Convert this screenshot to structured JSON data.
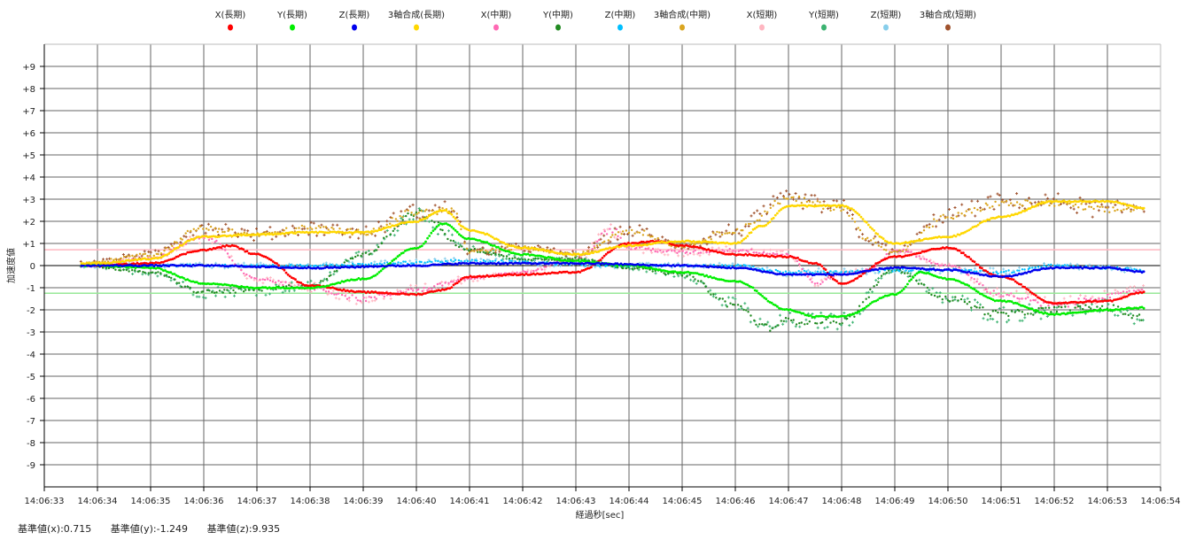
{
  "chart_data": {
    "type": "scatter",
    "xlabel": "経過秒[sec]",
    "ylabel": "加速度値",
    "xlim_seconds": [
      0,
      21
    ],
    "x_tick_labels": [
      "14:06:33",
      "14:06:34",
      "14:06:35",
      "14:06:36",
      "14:06:37",
      "14:06:38",
      "14:06:39",
      "14:06:40",
      "14:06:41",
      "14:06:42",
      "14:06:43",
      "14:06:44",
      "14:06:45",
      "14:06:46",
      "14:06:47",
      "14:06:48",
      "14:06:49",
      "14:06:50",
      "14:06:51",
      "14:06:52",
      "14:06:53",
      "14:06:54"
    ],
    "ylim": [
      -10,
      10
    ],
    "y_tick_labels": [
      "+9",
      "+8",
      "+7",
      "+6",
      "+5",
      "+4",
      "+3",
      "+2",
      "+1",
      "0",
      "-1",
      "-2",
      "-3",
      "-4",
      "-5",
      "-6",
      "-7",
      "-8",
      "-9"
    ],
    "y_tick_values": [
      9,
      8,
      7,
      6,
      5,
      4,
      3,
      2,
      1,
      0,
      -1,
      -2,
      -3,
      -4,
      -5,
      -6,
      -7,
      -8,
      -9
    ],
    "grid": true,
    "legend_position": "top",
    "reference_lines": [
      {
        "name": "基準値(x)",
        "value": 0.715,
        "color": "#ffb6c1"
      },
      {
        "name": "基準値(y)",
        "value": -1.249,
        "color": "#98e898"
      }
    ],
    "t_range": [
      0.7,
      20.7
    ],
    "series": [
      {
        "name": "X(長期)",
        "color": "#ff0000",
        "style": "line",
        "jitter": 0.03,
        "points": [
          [
            0.7,
            0
          ],
          [
            1,
            0
          ],
          [
            2,
            0.1
          ],
          [
            3,
            0.7
          ],
          [
            3.5,
            0.9
          ],
          [
            4,
            0.5
          ],
          [
            5,
            -0.9
          ],
          [
            6,
            -1.2
          ],
          [
            7,
            -1.3
          ],
          [
            7.5,
            -1.1
          ],
          [
            8,
            -0.5
          ],
          [
            9,
            -0.4
          ],
          [
            10,
            -0.3
          ],
          [
            11,
            1.0
          ],
          [
            11.5,
            1.1
          ],
          [
            12,
            0.9
          ],
          [
            13,
            0.5
          ],
          [
            14,
            0.4
          ],
          [
            14.5,
            0.1
          ],
          [
            15,
            -0.8
          ],
          [
            16,
            0.4
          ],
          [
            17,
            0.8
          ],
          [
            18,
            -0.5
          ],
          [
            19,
            -1.7
          ],
          [
            20,
            -1.6
          ],
          [
            20.7,
            -1.2
          ]
        ]
      },
      {
        "name": "Y(長期)",
        "color": "#00ee00",
        "style": "line",
        "jitter": 0.03,
        "points": [
          [
            0.7,
            0
          ],
          [
            1,
            0
          ],
          [
            2,
            -0.1
          ],
          [
            3,
            -0.8
          ],
          [
            4,
            -1.0
          ],
          [
            5,
            -1.0
          ],
          [
            6,
            -0.6
          ],
          [
            7,
            0.8
          ],
          [
            7.5,
            1.9
          ],
          [
            8,
            1.2
          ],
          [
            9,
            0.5
          ],
          [
            10,
            0.2
          ],
          [
            11,
            0.0
          ],
          [
            12,
            -0.3
          ],
          [
            13,
            -0.7
          ],
          [
            14,
            -2.0
          ],
          [
            14.5,
            -2.3
          ],
          [
            15,
            -2.3
          ],
          [
            16,
            -1.3
          ],
          [
            16.5,
            -0.3
          ],
          [
            17,
            -0.6
          ],
          [
            18,
            -1.6
          ],
          [
            19,
            -2.2
          ],
          [
            20,
            -2.0
          ],
          [
            20.7,
            -1.9
          ]
        ]
      },
      {
        "name": "Z(長期)",
        "color": "#0000ee",
        "style": "line",
        "jitter": 0.03,
        "points": [
          [
            0.7,
            0
          ],
          [
            3,
            0
          ],
          [
            5,
            -0.1
          ],
          [
            7,
            0
          ],
          [
            8,
            0.1
          ],
          [
            10,
            0.1
          ],
          [
            12,
            0
          ],
          [
            13,
            -0.1
          ],
          [
            14,
            -0.4
          ],
          [
            15,
            -0.4
          ],
          [
            16,
            -0.1
          ],
          [
            17,
            -0.2
          ],
          [
            18,
            -0.5
          ],
          [
            19,
            -0.1
          ],
          [
            20,
            -0.1
          ],
          [
            20.7,
            -0.3
          ]
        ]
      },
      {
        "name": "3軸合成(長期)",
        "color": "#ffd700",
        "style": "line",
        "jitter": 0.03,
        "points": [
          [
            0.7,
            0.1
          ],
          [
            1,
            0.1
          ],
          [
            2,
            0.3
          ],
          [
            3,
            1.3
          ],
          [
            4,
            1.4
          ],
          [
            5,
            1.5
          ],
          [
            6,
            1.5
          ],
          [
            7,
            2.0
          ],
          [
            7.5,
            2.5
          ],
          [
            8,
            1.6
          ],
          [
            9,
            0.8
          ],
          [
            10,
            0.5
          ],
          [
            11,
            0.9
          ],
          [
            12,
            1.1
          ],
          [
            13,
            1.0
          ],
          [
            13.5,
            1.8
          ],
          [
            14,
            2.7
          ],
          [
            15,
            2.7
          ],
          [
            16,
            1.0
          ],
          [
            17,
            1.3
          ],
          [
            18,
            2.2
          ],
          [
            19,
            2.9
          ],
          [
            20,
            2.9
          ],
          [
            20.7,
            2.6
          ]
        ]
      },
      {
        "name": "X(中期)",
        "color": "#ff69b4",
        "style": "dot",
        "jitter": 0.12,
        "points": [
          [
            0.7,
            0
          ],
          [
            2,
            0.3
          ],
          [
            3,
            1.3
          ],
          [
            4,
            -0.6
          ],
          [
            5,
            -1.0
          ],
          [
            6,
            -1.5
          ],
          [
            7,
            -1.1
          ],
          [
            8,
            -0.6
          ],
          [
            9,
            -0.3
          ],
          [
            10,
            0.3
          ],
          [
            10.7,
            1.6
          ],
          [
            11,
            0.8
          ],
          [
            12,
            0.6
          ],
          [
            13,
            0.7
          ],
          [
            14,
            0.5
          ],
          [
            14.5,
            -0.8
          ],
          [
            15,
            -0.4
          ],
          [
            15.5,
            -0.2
          ],
          [
            16,
            0.7
          ],
          [
            17,
            0.0
          ],
          [
            18,
            -1.3
          ],
          [
            19,
            -1.8
          ],
          [
            20,
            -1.4
          ],
          [
            20.7,
            -1.1
          ]
        ]
      },
      {
        "name": "Y(中期)",
        "color": "#228b22",
        "style": "dot",
        "jitter": 0.12,
        "points": [
          [
            0.7,
            0
          ],
          [
            2,
            -0.3
          ],
          [
            3,
            -1.2
          ],
          [
            4,
            -1.1
          ],
          [
            5,
            -0.9
          ],
          [
            6,
            0.5
          ],
          [
            7,
            2.4
          ],
          [
            8,
            0.7
          ],
          [
            9,
            0.3
          ],
          [
            10,
            0.3
          ],
          [
            11,
            -0.1
          ],
          [
            12,
            -0.4
          ],
          [
            13,
            -1.8
          ],
          [
            13.6,
            -2.8
          ],
          [
            14,
            -2.5
          ],
          [
            15,
            -2.5
          ],
          [
            16,
            -0.2
          ],
          [
            17,
            -1.5
          ],
          [
            18,
            -2.2
          ],
          [
            19,
            -2.0
          ],
          [
            20,
            -1.9
          ],
          [
            20.7,
            -2.4
          ]
        ]
      },
      {
        "name": "Z(中期)",
        "color": "#00bfff",
        "style": "dot",
        "jitter": 0.15,
        "points": [
          [
            0.7,
            0
          ],
          [
            5,
            0
          ],
          [
            8,
            0.2
          ],
          [
            11,
            0
          ],
          [
            13,
            0
          ],
          [
            14,
            -0.3
          ],
          [
            15,
            -0.3
          ],
          [
            16,
            -0.2
          ],
          [
            17,
            -0.2
          ],
          [
            18,
            -0.3
          ],
          [
            19,
            0
          ],
          [
            20,
            -0.1
          ],
          [
            20.7,
            -0.2
          ]
        ]
      },
      {
        "name": "3軸合成(中期)",
        "color": "#daa520",
        "style": "dot",
        "jitter": 0.12,
        "points": [
          [
            0.7,
            0.1
          ],
          [
            2,
            0.5
          ],
          [
            3,
            1.7
          ],
          [
            4,
            1.4
          ],
          [
            5,
            1.7
          ],
          [
            6,
            1.5
          ],
          [
            7,
            2.4
          ],
          [
            7.7,
            2.5
          ],
          [
            8,
            0.6
          ],
          [
            9,
            0.8
          ],
          [
            10,
            0.5
          ],
          [
            11,
            1.6
          ],
          [
            12,
            0.9
          ],
          [
            13,
            1.6
          ],
          [
            14,
            3.0
          ],
          [
            15,
            2.6
          ],
          [
            15.5,
            1.2
          ],
          [
            16,
            0.6
          ],
          [
            17,
            2.2
          ],
          [
            18,
            2.8
          ],
          [
            19,
            2.8
          ],
          [
            20,
            2.5
          ],
          [
            20.7,
            2.6
          ]
        ]
      },
      {
        "name": "X(短期)",
        "color": "#ffb6c1",
        "style": "plus",
        "jitter": 0.3,
        "points": [
          [
            0.7,
            0
          ],
          [
            2,
            0.3
          ],
          [
            3,
            1.3
          ],
          [
            4,
            -0.6
          ],
          [
            5,
            -1.0
          ],
          [
            6,
            -1.5
          ],
          [
            7,
            -1.1
          ],
          [
            8,
            -0.6
          ],
          [
            9,
            -0.3
          ],
          [
            10,
            0.3
          ],
          [
            10.7,
            1.6
          ],
          [
            11,
            0.8
          ],
          [
            12,
            0.6
          ],
          [
            13,
            0.7
          ],
          [
            14,
            0.5
          ],
          [
            14.5,
            -0.8
          ],
          [
            15,
            -0.4
          ],
          [
            15.5,
            -0.2
          ],
          [
            16,
            0.7
          ],
          [
            17,
            0.0
          ],
          [
            18,
            -1.3
          ],
          [
            19,
            -1.8
          ],
          [
            20,
            -1.4
          ],
          [
            20.7,
            -1.1
          ]
        ]
      },
      {
        "name": "Y(短期)",
        "color": "#3cb371",
        "style": "plus",
        "jitter": 0.3,
        "points": [
          [
            0.7,
            0
          ],
          [
            2,
            -0.3
          ],
          [
            3,
            -1.2
          ],
          [
            4,
            -1.1
          ],
          [
            5,
            -0.9
          ],
          [
            6,
            0.5
          ],
          [
            7,
            2.4
          ],
          [
            8,
            0.7
          ],
          [
            9,
            0.3
          ],
          [
            10,
            0.3
          ],
          [
            11,
            -0.1
          ],
          [
            12,
            -0.4
          ],
          [
            13,
            -1.8
          ],
          [
            13.6,
            -2.8
          ],
          [
            14,
            -2.5
          ],
          [
            15,
            -2.5
          ],
          [
            16,
            -0.2
          ],
          [
            17,
            -1.5
          ],
          [
            18,
            -2.2
          ],
          [
            19,
            -2.0
          ],
          [
            20,
            -1.9
          ],
          [
            20.7,
            -2.4
          ]
        ]
      },
      {
        "name": "Z(短期)",
        "color": "#87ceeb",
        "style": "plus",
        "jitter": 0.4,
        "points": [
          [
            0.7,
            0
          ],
          [
            5,
            0
          ],
          [
            8,
            0.2
          ],
          [
            11,
            0
          ],
          [
            13,
            0
          ],
          [
            14,
            -0.3
          ],
          [
            15,
            -0.3
          ],
          [
            16,
            -0.2
          ],
          [
            17,
            -0.2
          ],
          [
            18,
            -0.3
          ],
          [
            19,
            0
          ],
          [
            20,
            -0.1
          ],
          [
            20.7,
            -0.2
          ]
        ]
      },
      {
        "name": "3軸合成(短期)",
        "color": "#a0522d",
        "style": "plus",
        "jitter": 0.3,
        "points": [
          [
            0.7,
            0.1
          ],
          [
            2,
            0.5
          ],
          [
            3,
            1.8
          ],
          [
            4,
            1.4
          ],
          [
            5,
            1.7
          ],
          [
            6,
            1.5
          ],
          [
            7,
            2.4
          ],
          [
            7.7,
            2.6
          ],
          [
            8,
            0.6
          ],
          [
            9,
            0.8
          ],
          [
            10,
            0.5
          ],
          [
            11,
            1.6
          ],
          [
            12,
            0.9
          ],
          [
            13,
            1.6
          ],
          [
            14,
            3.0
          ],
          [
            15,
            2.6
          ],
          [
            15.5,
            1.2
          ],
          [
            16,
            0.6
          ],
          [
            17,
            2.3
          ],
          [
            18,
            2.9
          ],
          [
            19,
            2.9
          ],
          [
            20,
            2.5
          ],
          [
            20.7,
            2.7
          ]
        ]
      }
    ]
  },
  "footer": {
    "base_x": "基準値(x):0.715",
    "base_y": "基準値(y):-1.249",
    "base_z": "基準値(z):9.935"
  }
}
